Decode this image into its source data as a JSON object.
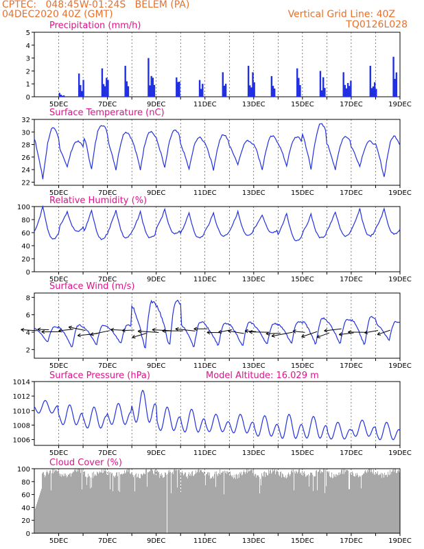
{
  "header": {
    "line1_left": "CPTEC:   048:45W-01:24S   BELEM (PA)",
    "line2_left": "04DEC2020 40Z (GMT)",
    "line1_right": "Vertical Grid Line: 40Z",
    "line2_right": "TQ0126L028"
  },
  "colors": {
    "series": "#2030e0",
    "title": "#e0128a",
    "header": "#e8702a",
    "cloud": "#a8a8a8",
    "grid": "#000000"
  },
  "chart_data": [
    {
      "type": "bar",
      "title": "Precipitation (mm/h)",
      "x_date_labels": [
        "5DEC",
        "7DEC",
        "9DEC",
        "11DEC",
        "13DEC",
        "15DEC",
        "17DEC",
        "19DEC"
      ],
      "ylim": [
        0,
        5
      ],
      "yticks": [
        0,
        1,
        2,
        3,
        4,
        5
      ],
      "events": [
        {
          "day": 5.0,
          "peak": 0.3
        },
        {
          "day": 5.8,
          "peak": 1.8
        },
        {
          "day": 6.75,
          "peak": 2.2
        },
        {
          "day": 7.7,
          "peak": 2.4
        },
        {
          "day": 8.65,
          "peak": 3.0
        },
        {
          "day": 9.8,
          "peak": 1.5
        },
        {
          "day": 10.75,
          "peak": 1.3
        },
        {
          "day": 11.7,
          "peak": 1.9
        },
        {
          "day": 12.75,
          "peak": 2.4
        },
        {
          "day": 13.7,
          "peak": 1.6
        },
        {
          "day": 14.75,
          "peak": 2.2
        },
        {
          "day": 15.7,
          "peak": 2.0
        },
        {
          "day": 16.65,
          "peak": 1.9
        },
        {
          "day": 17.75,
          "peak": 2.4
        },
        {
          "day": 18.7,
          "peak": 3.1
        }
      ]
    },
    {
      "type": "line",
      "title": "Surface Temperature (nC)",
      "x_date_labels": [
        "5DEC",
        "7DEC",
        "9DEC",
        "11DEC",
        "13DEC",
        "15DEC",
        "17DEC",
        "19DEC"
      ],
      "ylim": [
        21.5,
        32
      ],
      "yticks": [
        22,
        24,
        26,
        28,
        30,
        32
      ],
      "daily_max": [
        30.5,
        28.5,
        31.2,
        30,
        30.1,
        30.2,
        29.1,
        29.5,
        28.6,
        29.3,
        29.2,
        31.2,
        29.3,
        28.5,
        29.3
      ],
      "daily_min": [
        22.5,
        24.4,
        24.0,
        24.0,
        24.0,
        24.2,
        24.0,
        24.0,
        24.8,
        24.0,
        24.6,
        24.0,
        24.0,
        24.5,
        22.8
      ]
    },
    {
      "type": "line",
      "title": "Relative Humidity (%)",
      "x_date_labels": [
        "5DEC",
        "7DEC",
        "9DEC",
        "11DEC",
        "13DEC",
        "15DEC",
        "17DEC",
        "19DEC"
      ],
      "ylim": [
        0,
        100
      ],
      "yticks": [
        0,
        20,
        40,
        60,
        80,
        100
      ],
      "daily_high": [
        100,
        92,
        94,
        95,
        92,
        95,
        90,
        90,
        92,
        87,
        90,
        88,
        92,
        96,
        96
      ],
      "daily_low": [
        50,
        62,
        50,
        52,
        52,
        58,
        52,
        55,
        55,
        60,
        48,
        52,
        55,
        55,
        58
      ]
    },
    {
      "type": "line",
      "title": "Surface Wind (m/s)",
      "x_date_labels": [
        "5DEC",
        "7DEC",
        "9DEC",
        "11DEC",
        "13DEC",
        "15DEC",
        "17DEC",
        "19DEC"
      ],
      "ylim": [
        1,
        8.5
      ],
      "yticks": [
        2,
        4,
        6,
        8
      ],
      "daily_peak": [
        4.6,
        4.8,
        4.8,
        4.8,
        7.5,
        7.6,
        5.2,
        5.0,
        5.1,
        5.0,
        5.2,
        5.6,
        5.5,
        5.8,
        5.2
      ],
      "daily_low": [
        2.8,
        2.2,
        2.5,
        2.6,
        2.0,
        2.2,
        2.2,
        2.4,
        2.3,
        2.5,
        2.6,
        2.5,
        2.6,
        2.4,
        3.0
      ],
      "arrows_direction": "from east (easterly trade winds)"
    },
    {
      "type": "line",
      "title": "Surface Pressure (hPa)",
      "annotation": "Model Altitude: 16.029  m",
      "x_date_labels": [
        "5DEC",
        "7DEC",
        "9DEC",
        "11DEC",
        "13DEC",
        "15DEC",
        "17DEC",
        "19DEC"
      ],
      "ylim": [
        1005.2,
        1014
      ],
      "yticks": [
        1006,
        1008,
        1010,
        1012,
        1014
      ],
      "semi_diurnal_peak": [
        1011.4,
        1010.8,
        1010.5,
        1011,
        1012.8,
        1010.5,
        1010.2,
        1009.5,
        1009.5,
        1009.3,
        1009.5,
        1009.2,
        1008.4,
        1008.7,
        1008.4
      ],
      "semi_diurnal_trough": [
        1009.3,
        1007.5,
        1007,
        1007.5,
        1007.5,
        1006.6,
        1006.4,
        1006.6,
        1006.4,
        1005.9,
        1005.5,
        1005.6,
        1005.6,
        1006.0,
        1005.5
      ]
    },
    {
      "type": "area",
      "title": "Cloud Cover (%)",
      "x_date_labels": [
        "5DEC",
        "7DEC",
        "9DEC",
        "11DEC",
        "13DEC",
        "15DEC",
        "17DEC",
        "19DEC"
      ],
      "ylim": [
        0,
        100
      ],
      "yticks": [
        0,
        20,
        40,
        60,
        80,
        100
      ],
      "typical_range": [
        60,
        98
      ]
    }
  ]
}
